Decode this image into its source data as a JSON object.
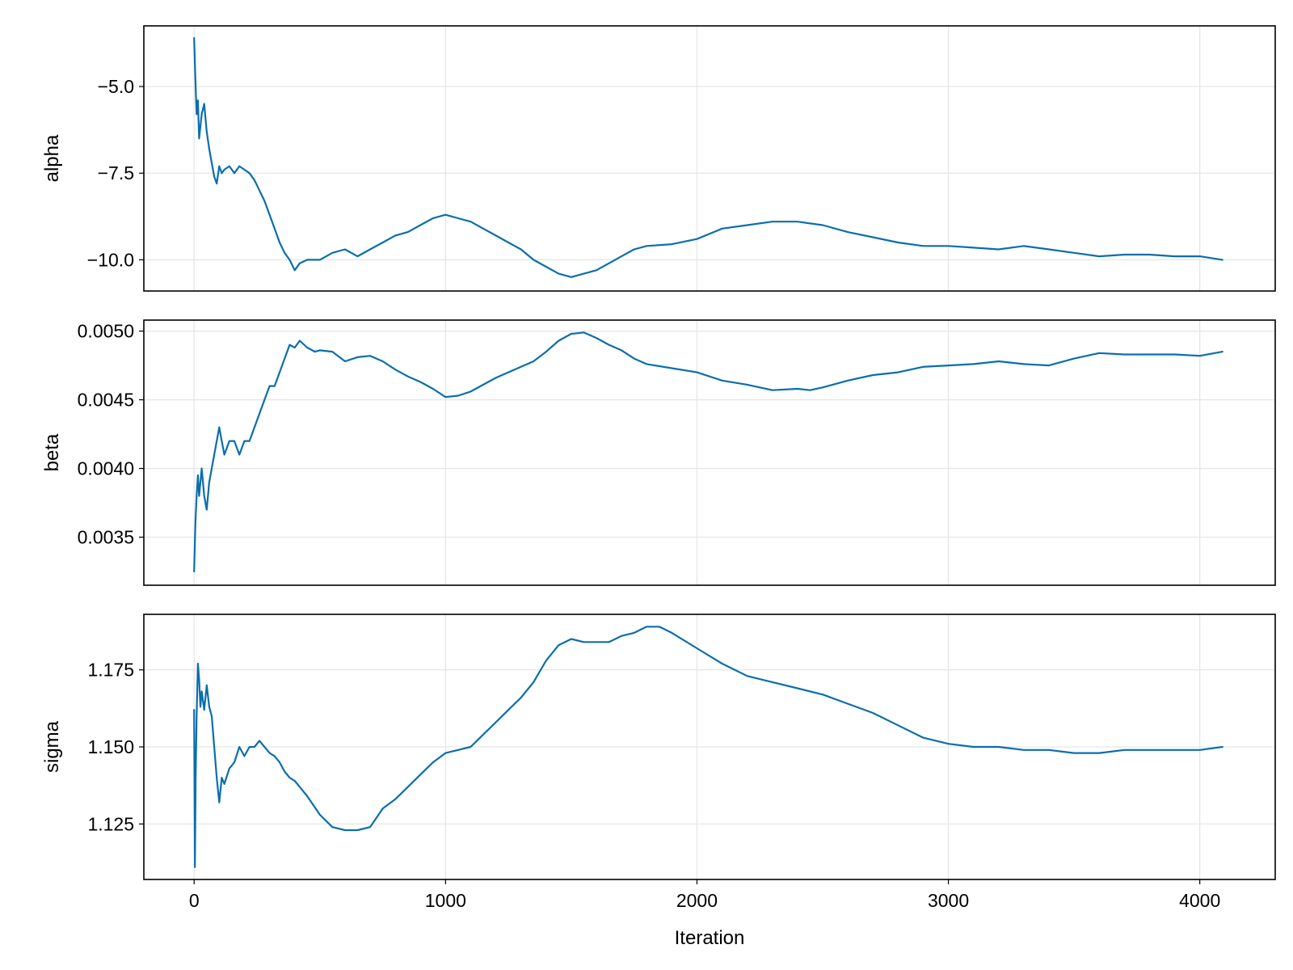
{
  "chart_data": {
    "type": "line",
    "xlabel": "Iteration",
    "x_ticks": [
      0,
      1000,
      2000,
      3000,
      4000
    ],
    "x_tick_labels": [
      "0",
      "1000",
      "2000",
      "3000",
      "4000"
    ],
    "xlim": [
      -200,
      4300
    ],
    "line_color": "#0a6ead",
    "panels": [
      {
        "ylabel": "alpha",
        "ylim": [
          -10.9,
          -3.25
        ],
        "y_ticks": [
          -5.0,
          -7.5,
          -10.0
        ],
        "y_tick_labels": [
          "−5.0",
          "−7.5",
          "−10.0"
        ],
        "x": [
          0,
          5,
          10,
          15,
          20,
          30,
          40,
          50,
          60,
          70,
          80,
          90,
          100,
          110,
          120,
          140,
          160,
          180,
          200,
          220,
          240,
          260,
          280,
          300,
          320,
          340,
          360,
          380,
          400,
          420,
          450,
          480,
          500,
          550,
          600,
          650,
          700,
          750,
          800,
          850,
          900,
          950,
          1000,
          1050,
          1100,
          1150,
          1200,
          1250,
          1300,
          1350,
          1400,
          1450,
          1500,
          1550,
          1600,
          1650,
          1700,
          1750,
          1800,
          1900,
          2000,
          2100,
          2200,
          2300,
          2400,
          2450,
          2500,
          2600,
          2700,
          2800,
          2900,
          3000,
          3100,
          3200,
          3300,
          3400,
          3500,
          3600,
          3700,
          3800,
          3900,
          4000,
          4090
        ],
        "y": [
          -3.6,
          -4.8,
          -5.8,
          -5.4,
          -6.5,
          -5.8,
          -5.5,
          -6.3,
          -6.8,
          -7.2,
          -7.6,
          -7.8,
          -7.3,
          -7.5,
          -7.4,
          -7.3,
          -7.5,
          -7.3,
          -7.4,
          -7.5,
          -7.7,
          -8.0,
          -8.3,
          -8.7,
          -9.1,
          -9.5,
          -9.8,
          -10.0,
          -10.3,
          -10.1,
          -10.0,
          -10.0,
          -10.0,
          -9.8,
          -9.7,
          -9.9,
          -9.7,
          -9.5,
          -9.3,
          -9.2,
          -9.0,
          -8.8,
          -8.7,
          -8.8,
          -8.9,
          -9.1,
          -9.3,
          -9.5,
          -9.7,
          -10.0,
          -10.2,
          -10.4,
          -10.5,
          -10.4,
          -10.3,
          -10.1,
          -9.9,
          -9.7,
          -9.6,
          -9.55,
          -9.4,
          -9.1,
          -9.0,
          -8.9,
          -8.9,
          -8.95,
          -9.0,
          -9.2,
          -9.35,
          -9.5,
          -9.6,
          -9.6,
          -9.65,
          -9.7,
          -9.6,
          -9.7,
          -9.8,
          -9.9,
          -9.85,
          -9.85,
          -9.9,
          -9.9,
          -10.0
        ]
      },
      {
        "ylabel": "beta",
        "ylim": [
          0.00315,
          0.00508
        ],
        "y_ticks": [
          0.005,
          0.0045,
          0.004,
          0.0035
        ],
        "y_tick_labels": [
          "0.0050",
          "0.0045",
          "0.0040",
          "0.0035"
        ],
        "x": [
          0,
          5,
          10,
          15,
          20,
          30,
          40,
          50,
          60,
          70,
          80,
          90,
          100,
          110,
          120,
          140,
          160,
          180,
          200,
          220,
          240,
          260,
          280,
          300,
          320,
          340,
          360,
          380,
          400,
          420,
          450,
          480,
          500,
          550,
          600,
          650,
          700,
          750,
          800,
          850,
          900,
          950,
          1000,
          1050,
          1100,
          1150,
          1200,
          1250,
          1300,
          1350,
          1400,
          1450,
          1500,
          1550,
          1600,
          1650,
          1700,
          1750,
          1800,
          1900,
          2000,
          2100,
          2200,
          2300,
          2400,
          2450,
          2500,
          2600,
          2700,
          2800,
          2900,
          3000,
          3100,
          3200,
          3300,
          3400,
          3500,
          3600,
          3700,
          3800,
          3900,
          4000,
          4090
        ],
        "y": [
          0.00325,
          0.0036,
          0.0038,
          0.00395,
          0.0038,
          0.004,
          0.0038,
          0.0037,
          0.0039,
          0.004,
          0.0041,
          0.0042,
          0.0043,
          0.0042,
          0.0041,
          0.0042,
          0.0042,
          0.0041,
          0.0042,
          0.0042,
          0.0043,
          0.0044,
          0.0045,
          0.0046,
          0.0046,
          0.0047,
          0.0048,
          0.0049,
          0.00488,
          0.00493,
          0.00488,
          0.00485,
          0.00486,
          0.00485,
          0.00478,
          0.00481,
          0.00482,
          0.00478,
          0.00472,
          0.00467,
          0.00463,
          0.00458,
          0.00452,
          0.00453,
          0.00456,
          0.00461,
          0.00466,
          0.0047,
          0.00474,
          0.00478,
          0.00485,
          0.00493,
          0.00498,
          0.00499,
          0.00495,
          0.0049,
          0.00486,
          0.0048,
          0.00476,
          0.00473,
          0.0047,
          0.00464,
          0.00461,
          0.00457,
          0.00458,
          0.00457,
          0.00459,
          0.00464,
          0.00468,
          0.0047,
          0.00474,
          0.00475,
          0.00476,
          0.00478,
          0.00476,
          0.00475,
          0.0048,
          0.00484,
          0.00483,
          0.00483,
          0.00483,
          0.00482,
          0.00485
        ]
      },
      {
        "ylabel": "sigma",
        "ylim": [
          1.107,
          1.193
        ],
        "y_ticks": [
          1.175,
          1.15,
          1.125
        ],
        "y_tick_labels": [
          "1.175",
          "1.150",
          "1.125"
        ],
        "x": [
          0,
          3,
          6,
          10,
          15,
          20,
          25,
          30,
          40,
          50,
          60,
          70,
          80,
          90,
          100,
          110,
          120,
          140,
          160,
          180,
          200,
          220,
          240,
          260,
          280,
          300,
          320,
          340,
          360,
          380,
          400,
          420,
          450,
          500,
          550,
          600,
          650,
          700,
          750,
          800,
          850,
          900,
          950,
          1000,
          1050,
          1100,
          1150,
          1200,
          1250,
          1300,
          1350,
          1400,
          1450,
          1500,
          1550,
          1600,
          1650,
          1700,
          1750,
          1800,
          1850,
          1900,
          2000,
          2100,
          2200,
          2300,
          2400,
          2500,
          2600,
          2700,
          2800,
          2900,
          3000,
          3100,
          3200,
          3300,
          3400,
          3500,
          3600,
          3700,
          3800,
          3900,
          4000,
          4090
        ],
        "y": [
          1.162,
          1.111,
          1.14,
          1.16,
          1.177,
          1.172,
          1.163,
          1.168,
          1.162,
          1.17,
          1.163,
          1.16,
          1.15,
          1.14,
          1.132,
          1.14,
          1.138,
          1.143,
          1.145,
          1.15,
          1.147,
          1.15,
          1.15,
          1.152,
          1.15,
          1.148,
          1.147,
          1.145,
          1.142,
          1.14,
          1.139,
          1.137,
          1.134,
          1.128,
          1.124,
          1.123,
          1.123,
          1.124,
          1.13,
          1.133,
          1.137,
          1.141,
          1.145,
          1.148,
          1.149,
          1.15,
          1.154,
          1.158,
          1.162,
          1.166,
          1.171,
          1.178,
          1.183,
          1.185,
          1.184,
          1.184,
          1.184,
          1.186,
          1.187,
          1.189,
          1.189,
          1.187,
          1.182,
          1.177,
          1.173,
          1.171,
          1.169,
          1.167,
          1.164,
          1.161,
          1.157,
          1.153,
          1.151,
          1.15,
          1.15,
          1.149,
          1.149,
          1.148,
          1.148,
          1.149,
          1.149,
          1.149,
          1.149,
          1.15
        ]
      }
    ]
  }
}
